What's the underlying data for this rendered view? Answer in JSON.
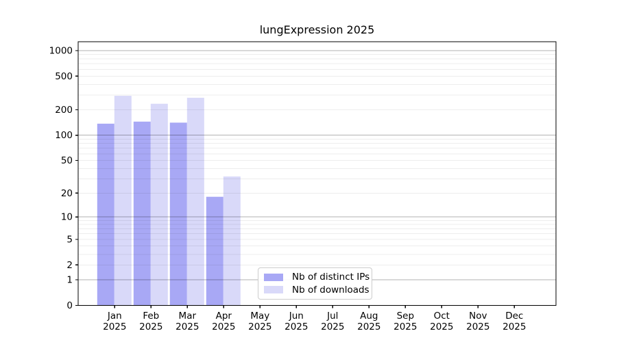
{
  "chart_data": {
    "type": "bar",
    "title": "lungExpression 2025",
    "categories": [
      "Jan",
      "Feb",
      "Mar",
      "Apr",
      "May",
      "Jun",
      "Jul",
      "Aug",
      "Sep",
      "Oct",
      "Nov",
      "Dec"
    ],
    "x_year_label": "2025",
    "series": [
      {
        "name": "Nb of distinct IPs",
        "color": "#a8a8f5",
        "values": [
          137,
          145,
          141,
          18,
          0,
          0,
          0,
          0,
          0,
          0,
          0,
          0
        ]
      },
      {
        "name": "Nb of downloads",
        "color": "#d9d9f9",
        "values": [
          293,
          236,
          278,
          32,
          0,
          0,
          0,
          0,
          0,
          0,
          0,
          0
        ]
      }
    ],
    "y_scale": "log1p",
    "y_ticks": [
      0,
      1,
      2,
      5,
      10,
      20,
      50,
      100,
      200,
      500,
      1000
    ],
    "ylim": [
      0,
      1283
    ],
    "grid": {
      "major_lines": [
        1,
        10,
        100,
        1000
      ],
      "minor_decades": [
        1,
        10,
        100
      ],
      "minor_multipliers": [
        2,
        3,
        4,
        5,
        6,
        7,
        8,
        9
      ]
    },
    "legend_position": "inside-bottom-center-left"
  },
  "colors": {
    "background": "#ffffff",
    "bar_distinct_ips": "#a8a8f5",
    "bar_downloads": "#d9d9f9",
    "axis": "#000000",
    "text": "#000000",
    "major_grid": "rgba(0,0,0,0.30)",
    "minor_grid": "rgba(0,0,0,0.07)",
    "legend_border": "#cccccc"
  }
}
